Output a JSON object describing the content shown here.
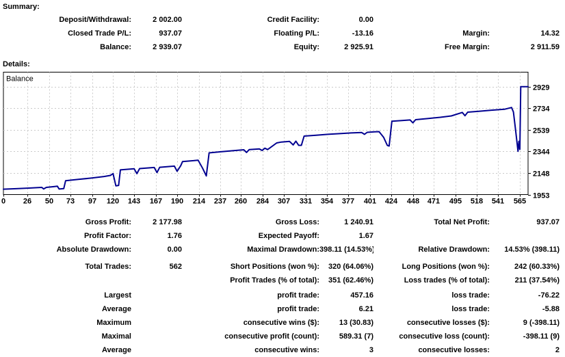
{
  "summary": {
    "title": "Summary:",
    "rows": [
      [
        "Deposit/Withdrawal:",
        "2 002.00",
        "Credit Facility:",
        "0.00",
        "",
        ""
      ],
      [
        "Closed Trade P/L:",
        "937.07",
        "Floating P/L:",
        "-13.16",
        "Margin:",
        "14.32"
      ],
      [
        "Balance:",
        "2 939.07",
        "Equity:",
        "2 925.91",
        "Free Margin:",
        "2 911.59"
      ]
    ]
  },
  "details": {
    "title": "Details:"
  },
  "chart_data": {
    "type": "line",
    "title": "Balance",
    "legend_label": "Balance",
    "line_color": "#000090",
    "grid_color": "#c9c9c9",
    "border_color": "#000000",
    "xlabel": "",
    "ylabel": "",
    "x_ticks": [
      0,
      26,
      50,
      73,
      97,
      120,
      143,
      167,
      190,
      214,
      237,
      260,
      284,
      307,
      331,
      354,
      377,
      401,
      424,
      448,
      471,
      495,
      518,
      541,
      565
    ],
    "y_ticks": [
      2929,
      2734,
      2539,
      2344,
      2148,
      1953
    ],
    "xlim": [
      0,
      574
    ],
    "ylim": [
      1953,
      3060
    ],
    "grid": true,
    "legend_position": "top-left",
    "points": [
      [
        0,
        2002
      ],
      [
        14,
        2006
      ],
      [
        28,
        2012
      ],
      [
        42,
        2018
      ],
      [
        44,
        2004
      ],
      [
        47,
        2018
      ],
      [
        56,
        2026
      ],
      [
        59,
        2029
      ],
      [
        61,
        2003
      ],
      [
        66,
        2007
      ],
      [
        68,
        2078
      ],
      [
        82,
        2090
      ],
      [
        96,
        2102
      ],
      [
        110,
        2116
      ],
      [
        117,
        2126
      ],
      [
        120,
        2142
      ],
      [
        123,
        2032
      ],
      [
        126,
        2036
      ],
      [
        128,
        2176
      ],
      [
        143,
        2186
      ],
      [
        146,
        2142
      ],
      [
        149,
        2188
      ],
      [
        165,
        2198
      ],
      [
        168,
        2152
      ],
      [
        171,
        2200
      ],
      [
        187,
        2210
      ],
      [
        190,
        2164
      ],
      [
        194,
        2214
      ],
      [
        196,
        2252
      ],
      [
        208,
        2260
      ],
      [
        213,
        2264
      ],
      [
        218,
        2190
      ],
      [
        222,
        2122
      ],
      [
        225,
        2330
      ],
      [
        238,
        2340
      ],
      [
        252,
        2350
      ],
      [
        263,
        2358
      ],
      [
        266,
        2334
      ],
      [
        269,
        2360
      ],
      [
        280,
        2366
      ],
      [
        283,
        2352
      ],
      [
        286,
        2372
      ],
      [
        289,
        2360
      ],
      [
        292,
        2378
      ],
      [
        299,
        2420
      ],
      [
        304,
        2428
      ],
      [
        313,
        2434
      ],
      [
        317,
        2402
      ],
      [
        320,
        2436
      ],
      [
        323,
        2398
      ],
      [
        326,
        2398
      ],
      [
        329,
        2482
      ],
      [
        342,
        2490
      ],
      [
        355,
        2498
      ],
      [
        368,
        2504
      ],
      [
        380,
        2510
      ],
      [
        392,
        2514
      ],
      [
        395,
        2498
      ],
      [
        398,
        2516
      ],
      [
        406,
        2520
      ],
      [
        411,
        2522
      ],
      [
        416,
        2470
      ],
      [
        420,
        2398
      ],
      [
        422,
        2392
      ],
      [
        425,
        2616
      ],
      [
        436,
        2622
      ],
      [
        445,
        2628
      ],
      [
        448,
        2602
      ],
      [
        451,
        2630
      ],
      [
        464,
        2640
      ],
      [
        478,
        2652
      ],
      [
        490,
        2664
      ],
      [
        502,
        2696
      ],
      [
        505,
        2666
      ],
      [
        508,
        2698
      ],
      [
        520,
        2706
      ],
      [
        534,
        2716
      ],
      [
        548,
        2724
      ],
      [
        556,
        2740
      ],
      [
        558,
        2700
      ],
      [
        560,
        2560
      ],
      [
        562,
        2415
      ],
      [
        563,
        2344
      ],
      [
        564,
        2435
      ],
      [
        565,
        2362
      ],
      [
        566,
        2929
      ],
      [
        574,
        2928
      ]
    ]
  },
  "stats": {
    "groups": [
      {
        "rows": [
          [
            "Gross Profit:",
            "2 177.98",
            "Gross Loss:",
            "1 240.91",
            "Total Net Profit:",
            "937.07"
          ],
          [
            "Profit Factor:",
            "1.76",
            "Expected Payoff:",
            "1.67",
            "",
            ""
          ],
          [
            "Absolute Drawdown:",
            "0.00",
            "Maximal Drawdown:",
            "398.11 (14.53%)",
            "Relative Drawdown:",
            "14.53% (398.11)"
          ]
        ]
      },
      {
        "rows": [
          [
            "Total Trades:",
            "562",
            "Short Positions (won %):",
            "320 (64.06%)",
            "Long Positions (won %):",
            "242 (60.33%)"
          ],
          [
            "",
            "",
            "Profit Trades (% of total):",
            "351 (62.46%)",
            "Loss trades (% of total):",
            "211 (37.54%)"
          ]
        ]
      },
      {
        "rows": [
          [
            "Largest",
            "",
            "profit trade:",
            "457.16",
            "loss trade:",
            "-76.22"
          ],
          [
            "Average",
            "",
            "profit trade:",
            "6.21",
            "loss trade:",
            "-5.88"
          ],
          [
            "Maximum",
            "",
            "consecutive wins ($):",
            "13 (30.83)",
            "consecutive losses ($):",
            "9 (-398.11)"
          ],
          [
            "Maximal",
            "",
            "consecutive profit (count):",
            "589.31 (7)",
            "consecutive loss (count):",
            "-398.11 (9)"
          ],
          [
            "Average",
            "",
            "consecutive wins:",
            "3",
            "consecutive losses:",
            "2"
          ]
        ]
      }
    ]
  }
}
